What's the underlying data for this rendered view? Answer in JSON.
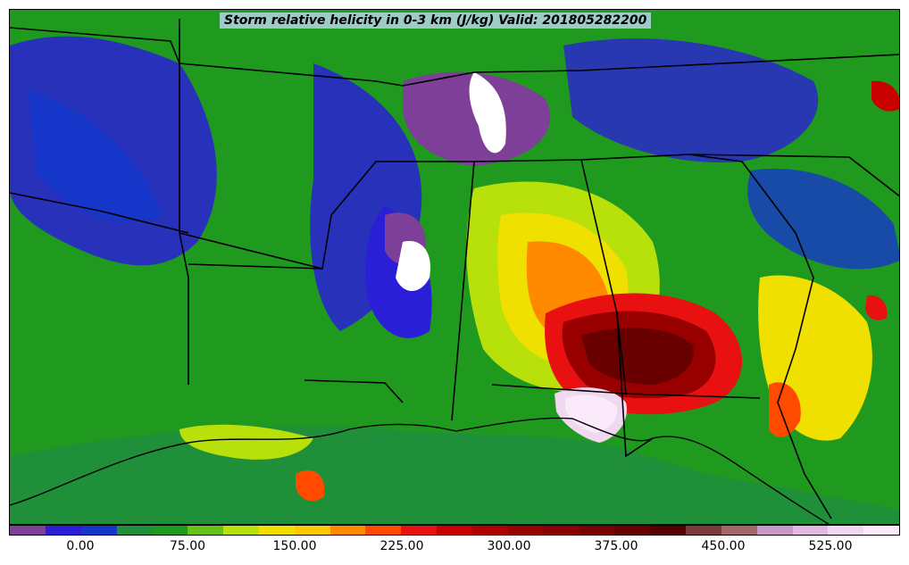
{
  "title": "Storm relative helicity in 0-3 km (J/kg) Valid: 201805282200",
  "colorbar": {
    "colors": [
      "#7e3f98",
      "#2a1fd6",
      "#1636c9",
      "#1f8f3a",
      "#1f9a1f",
      "#66c21a",
      "#b8e00a",
      "#f0e000",
      "#ffc800",
      "#ff8a00",
      "#ff4a00",
      "#e81010",
      "#c80000",
      "#b00000",
      "#980000",
      "#880000",
      "#780000",
      "#680000",
      "#580000",
      "#7a3a3a",
      "#a06868",
      "#c89ac8",
      "#e0b8e0",
      "#f0d8f0",
      "#faeafa"
    ],
    "tick_labels": [
      "0.00",
      "75.00",
      "150.00",
      "225.00",
      "300.00",
      "375.00",
      "450.00",
      "525.00"
    ]
  }
}
